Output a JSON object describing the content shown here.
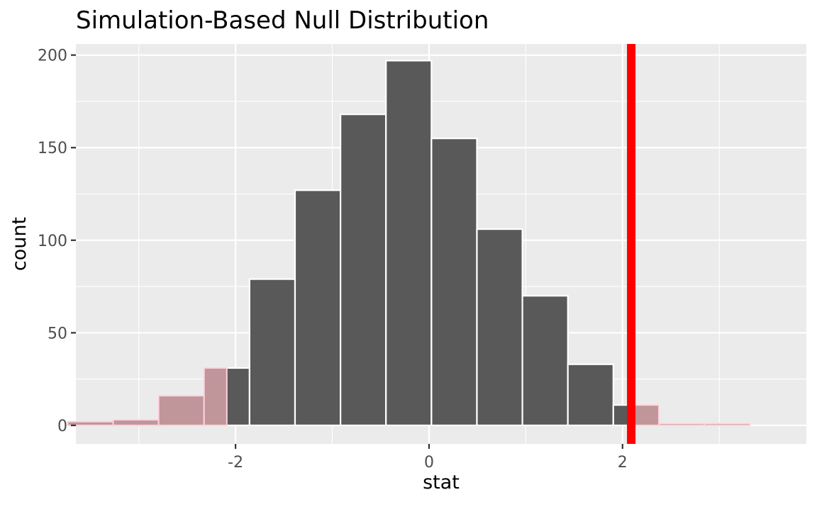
{
  "chart_data": {
    "type": "bar",
    "title": "Simulation-Based Null Distribution",
    "xlabel": "stat",
    "ylabel": "count",
    "xlim": [
      -3.65,
      3.9
    ],
    "ylim": [
      -10,
      206
    ],
    "x_ticks": [
      -2,
      0,
      2
    ],
    "x_tick_labels": [
      "-2",
      "0",
      "2"
    ],
    "y_ticks": [
      0,
      50,
      100,
      150,
      200
    ],
    "y_tick_labels": [
      "0",
      "50",
      "100",
      "150",
      "200"
    ],
    "grid": true,
    "bin_width": 0.47,
    "bins": [
      {
        "center": -3.5,
        "count": 2
      },
      {
        "center": -3.03,
        "count": 3
      },
      {
        "center": -2.56,
        "count": 16
      },
      {
        "center": -2.09,
        "count": 31
      },
      {
        "center": -1.62,
        "count": 79
      },
      {
        "center": -1.15,
        "count": 127
      },
      {
        "center": -0.68,
        "count": 168
      },
      {
        "center": -0.21,
        "count": 197
      },
      {
        "center": 0.26,
        "count": 155
      },
      {
        "center": 0.73,
        "count": 106
      },
      {
        "center": 1.2,
        "count": 70
      },
      {
        "center": 1.67,
        "count": 33
      },
      {
        "center": 2.14,
        "count": 11
      },
      {
        "center": 2.61,
        "count": 1
      },
      {
        "center": 3.08,
        "count": 1
      }
    ],
    "observed_stat": 2.09,
    "shade_direction": "two-sided",
    "colors": {
      "bar_fill": "#595959",
      "bar_outline": "#ffffff",
      "shade_fill": "#c0969b",
      "shade_outline": "#ffd1dc",
      "observed_line": "#ff0000",
      "panel_background": "#ebebeb",
      "grid": "#ffffff",
      "axis_text": "#4d4d4d",
      "title_text": "#000000"
    }
  }
}
